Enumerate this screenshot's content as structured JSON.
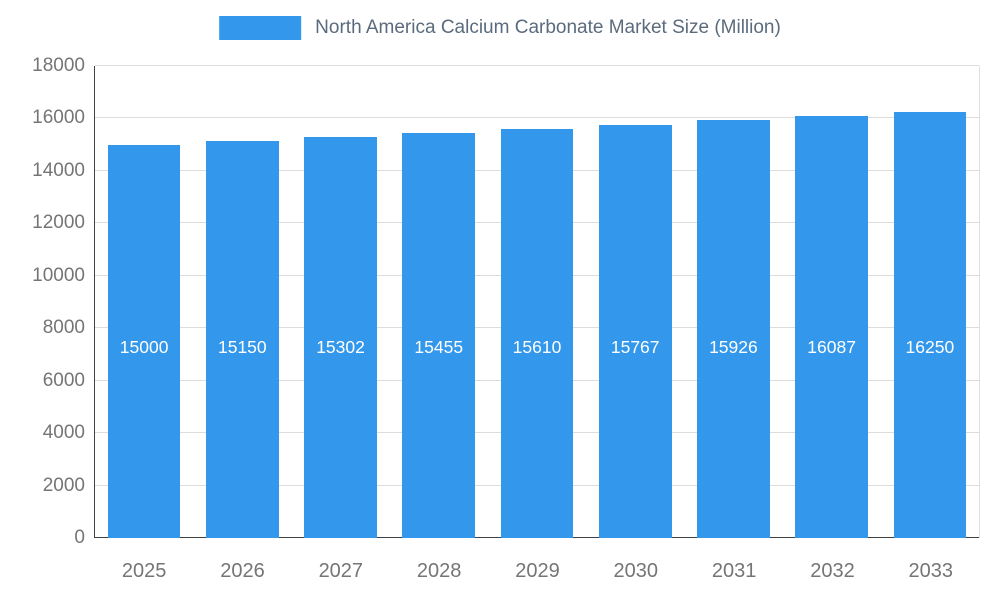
{
  "chart_data": {
    "type": "bar",
    "title": "North America Calcium Carbonate Market Size (Million)",
    "categories": [
      "2025",
      "2026",
      "2027",
      "2028",
      "2029",
      "2030",
      "2031",
      "2032",
      "2033"
    ],
    "values": [
      15000,
      15150,
      15302,
      15455,
      15610,
      15767,
      15926,
      16087,
      16250
    ],
    "xlabel": "",
    "ylabel": "",
    "ylim": [
      0,
      18000
    ],
    "ytick_step": 2000,
    "grid": true,
    "legend_position": "top",
    "bar_color": "#3398EB",
    "value_label_color": "#ffffff",
    "axis_text_color": "#757575",
    "title_color": "#5A6B7D",
    "gridline_color": "#dddddd",
    "axis_line_color": "#424242"
  }
}
